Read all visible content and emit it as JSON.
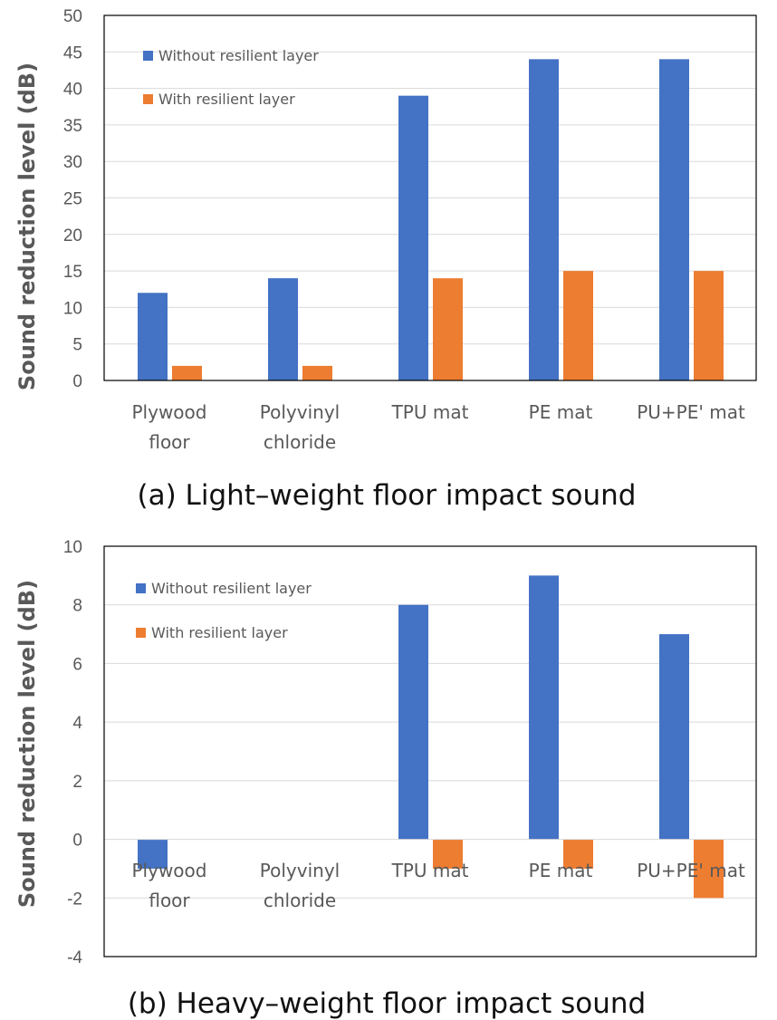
{
  "chart_data": [
    {
      "type": "bar",
      "caption": "(a) Light–weight floor impact sound",
      "ylabel": "Sound reduction level (dB)",
      "xlabel": "",
      "ylim": [
        0,
        50
      ],
      "yticks": [
        0,
        5,
        10,
        15,
        20,
        25,
        30,
        35,
        40,
        45,
        50
      ],
      "grid": true,
      "legend_position": "top-left",
      "categories": [
        [
          "Plywood",
          "floor"
        ],
        [
          "Polyvinyl",
          "chloride"
        ],
        [
          "TPU mat"
        ],
        [
          "PE mat"
        ],
        [
          "PU+PE' mat"
        ]
      ],
      "series": [
        {
          "name": "Without resilient layer",
          "color": "#4472C4",
          "values": [
            12,
            14,
            39,
            44,
            44
          ]
        },
        {
          "name": "With resilient layer",
          "color": "#ED7D31",
          "values": [
            2,
            2,
            14,
            15,
            15
          ]
        }
      ]
    },
    {
      "type": "bar",
      "caption": "(b) Heavy–weight floor impact sound",
      "ylabel": "Sound reduction level (dB)",
      "xlabel": "",
      "ylim": [
        -4,
        10
      ],
      "yticks": [
        -4,
        -2,
        0,
        2,
        4,
        6,
        8,
        10
      ],
      "grid": true,
      "legend_position": "top-left",
      "categories": [
        [
          "Plywood",
          "floor"
        ],
        [
          "Polyvinyl",
          "chloride"
        ],
        [
          "TPU mat"
        ],
        [
          "PE mat"
        ],
        [
          "PU+PE' mat"
        ]
      ],
      "series": [
        {
          "name": "Without resilient layer",
          "color": "#4472C4",
          "values": [
            -1,
            0,
            8,
            9,
            7
          ]
        },
        {
          "name": "With resilient layer",
          "color": "#ED7D31",
          "values": [
            0,
            0,
            -1,
            -1,
            -2
          ]
        }
      ]
    }
  ]
}
